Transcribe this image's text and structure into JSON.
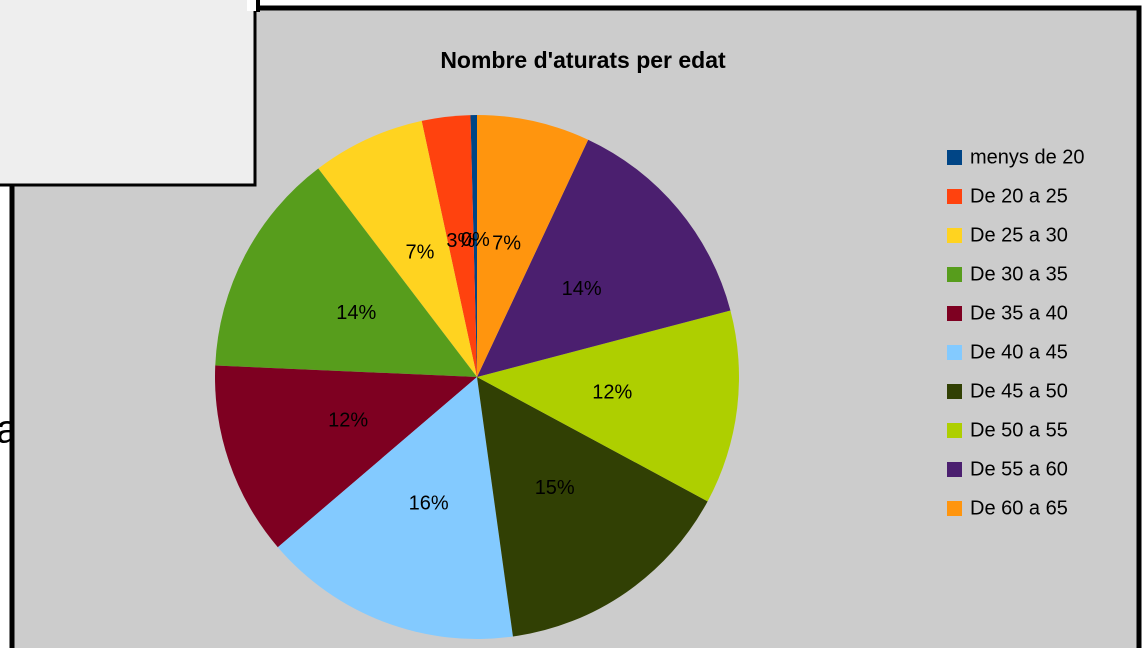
{
  "background_text": "a",
  "chart_data": {
    "type": "pie",
    "title": "Nombre d'aturats per edat",
    "categories": [
      "menys de 20",
      "De 20 a 25",
      "De 25 a 30",
      "De 30 a 35",
      "De 35 a 40",
      "De 40 a 45",
      "De 45 a 50",
      "De 50 a 55",
      "De 55 a 60",
      "De 60 a 65"
    ],
    "values": [
      0.4,
      3,
      7,
      14,
      12,
      16,
      15,
      12,
      14,
      7
    ],
    "value_labels": [
      "0%",
      "3%",
      "7%",
      "14%",
      "12%",
      "16%",
      "15%",
      "12%",
      "14%",
      "7%"
    ],
    "colors": [
      "#004586",
      "#ff420e",
      "#ffd320",
      "#579d1c",
      "#7e0021",
      "#83caff",
      "#314004",
      "#aecf00",
      "#4b1f6f",
      "#ff950e"
    ],
    "direction": "counterclockwise",
    "legend": "right"
  }
}
